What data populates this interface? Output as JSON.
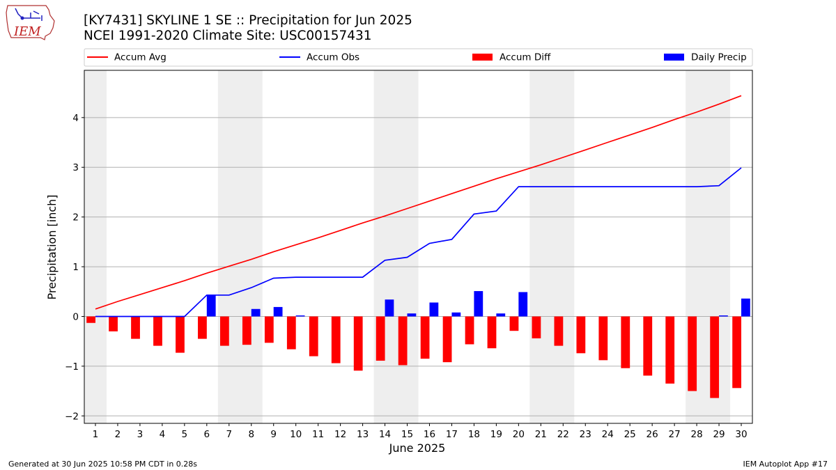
{
  "title": {
    "line1": "[KY7431] SKYLINE 1 SE :: Precipitation for Jun 2025",
    "line2": "NCEI 1991-2020 Climate Site: USC00157431"
  },
  "logo": {
    "text": "IEM"
  },
  "footer": {
    "generated": "Generated at 30 Jun 2025 10:58 PM CDT in 0.28s",
    "app": "IEM Autoplot App #17"
  },
  "colors": {
    "accum_avg": "#ff0000",
    "accum_obs": "#0000ff",
    "accum_diff": "#ff0000",
    "daily_precip": "#0000ff",
    "weekend_shade": "#eeeeee",
    "grid": "#b0b0b0"
  },
  "chart_data": {
    "type": "bar",
    "xlabel": "June 2025",
    "ylabel": "Precipitation [inch]",
    "ylim": [
      -2.15,
      4.95
    ],
    "xlim": [
      0.5,
      30.5
    ],
    "yticks": [
      -2,
      -1,
      0,
      1,
      2,
      3,
      4
    ],
    "grid": "horizontal",
    "legend": {
      "placement": "top",
      "entries": [
        "Accum Avg",
        "Accum Obs",
        "Accum Diff",
        "Daily Precip"
      ]
    },
    "shaded_weekends": [
      [
        0.5,
        1.5
      ],
      [
        6.5,
        8.5
      ],
      [
        13.5,
        15.5
      ],
      [
        20.5,
        22.5
      ],
      [
        27.5,
        29.5
      ]
    ],
    "days": [
      1,
      2,
      3,
      4,
      5,
      6,
      7,
      8,
      9,
      10,
      11,
      12,
      13,
      14,
      15,
      16,
      17,
      18,
      19,
      20,
      21,
      22,
      23,
      24,
      25,
      26,
      27,
      28,
      29,
      30
    ],
    "series": [
      {
        "name": "Accum Avg",
        "kind": "line",
        "values": [
          0.15,
          0.3,
          0.44,
          0.58,
          0.72,
          0.87,
          1.01,
          1.15,
          1.3,
          1.44,
          1.58,
          1.73,
          1.88,
          2.02,
          2.17,
          2.32,
          2.47,
          2.62,
          2.77,
          2.91,
          3.05,
          3.2,
          3.35,
          3.5,
          3.65,
          3.8,
          3.96,
          4.11,
          4.27,
          4.44
        ]
      },
      {
        "name": "Accum Obs",
        "kind": "line",
        "values": [
          0.0,
          0.0,
          0.0,
          0.0,
          0.0,
          0.43,
          0.43,
          0.58,
          0.77,
          0.79,
          0.79,
          0.79,
          0.79,
          1.13,
          1.19,
          1.47,
          1.55,
          2.06,
          2.12,
          2.61,
          2.61,
          2.61,
          2.61,
          2.61,
          2.61,
          2.61,
          2.61,
          2.61,
          2.63,
          2.99
        ]
      },
      {
        "name": "Accum Diff",
        "kind": "bar",
        "values": [
          -0.13,
          -0.3,
          -0.45,
          -0.59,
          -0.73,
          -0.45,
          -0.59,
          -0.57,
          -0.53,
          -0.66,
          -0.8,
          -0.94,
          -1.09,
          -0.89,
          -0.98,
          -0.85,
          -0.92,
          -0.56,
          -0.64,
          -0.29,
          -0.44,
          -0.59,
          -0.74,
          -0.88,
          -1.04,
          -1.19,
          -1.35,
          -1.5,
          -1.64,
          -1.44
        ]
      },
      {
        "name": "Daily Precip",
        "kind": "bar",
        "values": [
          0,
          0,
          0,
          0,
          0,
          0.43,
          0,
          0.15,
          0.19,
          0.02,
          0,
          0,
          0,
          0.34,
          0.06,
          0.28,
          0.08,
          0.51,
          0.06,
          0.49,
          0,
          0,
          0,
          0,
          0,
          0,
          0,
          0,
          0.02,
          0.36
        ]
      }
    ]
  }
}
